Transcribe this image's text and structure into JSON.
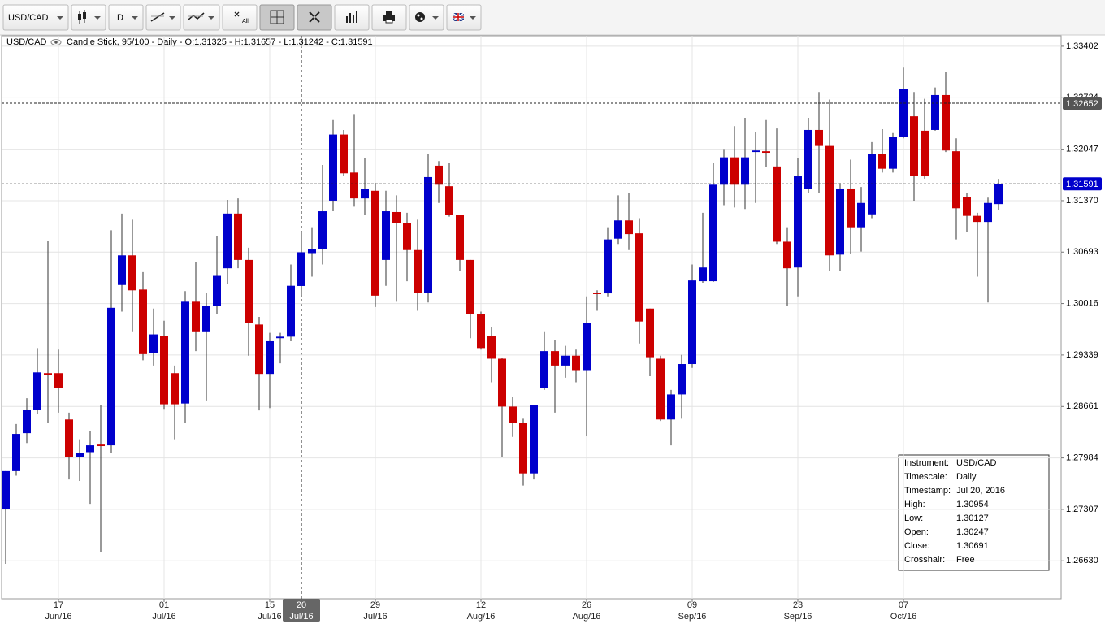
{
  "toolbar": {
    "symbol": "USD/CAD",
    "timescale": "D",
    "clear_label": "All"
  },
  "header": {
    "symbol": "USD/CAD",
    "details": "Candle Stick, 95/100 - Daily - O:1.31325 - H:1.31657 - L:1.31242 - C:1.31591"
  },
  "chart_data": {
    "type": "candlestick",
    "categories": [
      null,
      null,
      null,
      null,
      null,
      "17\nJun/16",
      null,
      null,
      null,
      null,
      null,
      null,
      null,
      null,
      null,
      "01\nJul/16",
      null,
      null,
      null,
      null,
      null,
      null,
      null,
      null,
      null,
      "15\nJul/16",
      null,
      null,
      "20\nJul/16",
      null,
      null,
      null,
      null,
      null,
      null,
      "29\nJul/16",
      null,
      null,
      null,
      null,
      null,
      null,
      null,
      null,
      null,
      "12\nAug/16",
      null,
      null,
      null,
      null,
      null,
      null,
      null,
      null,
      null,
      "26\nAug/16",
      null,
      null,
      null,
      null,
      null,
      null,
      null,
      null,
      null,
      "09\nSep/16",
      null,
      null,
      null,
      null,
      null,
      null,
      null,
      null,
      null,
      "23\nSep/16",
      null,
      null,
      null,
      null,
      null,
      null,
      null,
      null,
      null,
      "07\nOct/16",
      null,
      null,
      null,
      null,
      null,
      null,
      null,
      null,
      null
    ],
    "crosshair": "20\nJul/16",
    "open": [
      1.2731,
      1.2781,
      1.2831,
      1.2862,
      1.291,
      1.291,
      1.2849,
      1.28,
      1.2806,
      1.2816,
      1.2815,
      1.3026,
      1.3065,
      1.302,
      1.2936,
      1.2959,
      1.291,
      1.287,
      1.3004,
      1.2965,
      1.2998,
      1.3048,
      1.312,
      1.3059,
      1.2974,
      1.2909,
      1.2956,
      1.2958,
      1.30247,
      1.3068,
      1.3073,
      1.3137,
      1.3224,
      1.3174,
      1.314,
      1.315,
      1.3059,
      1.3122,
      1.3107,
      1.3072,
      1.3016,
      1.3183,
      1.3156,
      1.3118,
      1.3059,
      1.2988,
      1.2959,
      1.2929,
      1.2866,
      1.2844,
      1.2778,
      1.289,
      1.2939,
      1.292,
      1.2933,
      1.2914,
      1.3016,
      1.3015,
      1.3087,
      1.3111,
      1.3094,
      1.2995,
      1.2929,
      1.2849,
      1.2882,
      1.2922,
      1.3031,
      1.3031,
      1.3158,
      1.3194,
      1.3158,
      1.3201,
      1.3202,
      1.3182,
      1.3083,
      1.3049,
      1.3152,
      1.323,
      1.3209,
      1.3066,
      1.3153,
      1.3102,
      1.3119,
      1.3198,
      1.3179,
      1.3221,
      1.3248,
      1.3229,
      1.323,
      1.3276,
      1.3202,
      1.3142,
      1.3117,
      1.3109,
      1.31325
    ],
    "high": [
      1.2781,
      1.2843,
      1.2877,
      1.2943,
      1.3084,
      1.2941,
      1.2858,
      1.2823,
      1.2834,
      1.2868,
      1.3098,
      1.312,
      1.3112,
      1.3043,
      1.2995,
      1.2979,
      1.292,
      1.3018,
      1.3056,
      1.3016,
      1.3091,
      1.3138,
      1.314,
      1.3075,
      1.2984,
      1.2963,
      1.2963,
      1.3053,
      1.30954,
      1.3102,
      1.3184,
      1.3243,
      1.323,
      1.3251,
      1.3193,
      1.316,
      1.315,
      1.3144,
      1.3121,
      1.3112,
      1.3198,
      1.3189,
      1.3187,
      1.3118,
      1.3059,
      1.2991,
      1.2971,
      1.293,
      1.2879,
      1.285,
      1.2868,
      1.2965,
      1.2954,
      1.2946,
      1.2941,
      1.3011,
      1.3019,
      1.3102,
      1.3144,
      1.3147,
      1.3114,
      1.2995,
      1.2933,
      1.2888,
      1.2934,
      1.3053,
      1.3121,
      1.3187,
      1.3205,
      1.3235,
      1.3246,
      1.3227,
      1.3243,
      1.3232,
      1.3102,
      1.3193,
      1.3246,
      1.328,
      1.327,
      1.316,
      1.3191,
      1.3155,
      1.3214,
      1.3231,
      1.3226,
      1.3312,
      1.328,
      1.3271,
      1.3286,
      1.3306,
      1.3219,
      1.3147,
      1.3121,
      1.3141,
      1.31657
    ],
    "low": [
      1.2659,
      1.2775,
      1.2818,
      1.2856,
      1.2845,
      1.2858,
      1.277,
      1.2768,
      1.2738,
      1.2674,
      1.2805,
      1.2991,
      1.2965,
      1.2927,
      1.292,
      1.2863,
      1.2823,
      1.2845,
      1.2939,
      1.2874,
      1.2988,
      1.3027,
      1.3048,
      1.2933,
      1.2861,
      1.2864,
      1.2923,
      1.2952,
      1.30127,
      1.3037,
      1.3053,
      1.3123,
      1.317,
      1.3129,
      1.3118,
      1.2997,
      1.3025,
      1.3004,
      1.3031,
      1.2992,
      1.3003,
      1.3134,
      1.3116,
      1.3044,
      1.2956,
      1.2941,
      1.2898,
      1.2799,
      1.2826,
      1.2762,
      1.277,
      1.2888,
      1.2858,
      1.2904,
      1.2898,
      1.2827,
      1.2992,
      1.3011,
      1.308,
      1.3072,
      1.2949,
      1.2906,
      1.2847,
      1.2815,
      1.285,
      1.2917,
      1.3029,
      1.303,
      1.3131,
      1.3128,
      1.3126,
      1.3134,
      1.3181,
      1.308,
      1.2999,
      1.3011,
      1.3147,
      1.3147,
      1.3045,
      1.3045,
      1.3067,
      1.307,
      1.3114,
      1.3174,
      1.3174,
      1.3219,
      1.3137,
      1.3166,
      1.3229,
      1.3201,
      1.3086,
      1.3096,
      1.3037,
      1.3003,
      1.31242
    ],
    "close": [
      1.2781,
      1.283,
      1.2862,
      1.2911,
      1.2908,
      1.2891,
      1.28,
      1.2805,
      1.2815,
      1.2814,
      1.2996,
      1.3065,
      1.3019,
      1.2935,
      1.2961,
      1.2869,
      1.2869,
      1.3004,
      1.2965,
      1.2998,
      1.3038,
      1.312,
      1.3059,
      1.2976,
      1.2909,
      1.2952,
      1.2958,
      1.3025,
      1.30691,
      1.3073,
      1.3123,
      1.3224,
      1.3173,
      1.314,
      1.3152,
      1.3012,
      1.3123,
      1.3107,
      1.3072,
      1.3016,
      1.3168,
      1.3158,
      1.3118,
      1.3059,
      1.2988,
      1.2943,
      1.2929,
      1.2866,
      1.2845,
      1.2778,
      1.2868,
      1.2939,
      1.292,
      1.2933,
      1.2914,
      1.2976,
      1.3014,
      1.3086,
      1.3111,
      1.3093,
      1.2978,
      1.2931,
      1.2849,
      1.2882,
      1.2922,
      1.3032,
      1.3049,
      1.3158,
      1.3194,
      1.3158,
      1.3194,
      1.3203,
      1.32,
      1.3083,
      1.3048,
      1.3169,
      1.323,
      1.3209,
      1.3065,
      1.3153,
      1.3102,
      1.3134,
      1.3198,
      1.3179,
      1.3221,
      1.3284,
      1.317,
      1.3169,
      1.3276,
      1.3203,
      1.3127,
      1.3117,
      1.3109,
      1.3134,
      1.31591
    ],
    "up_color": "#0000cc",
    "down_color": "#cc0000",
    "ylim": [
      1.2613,
      1.3354
    ],
    "yticks": [
      1.33402,
      1.32724,
      1.32047,
      {
        "value": 1.3137,
        "label": "1.31370"
      },
      1.30693,
      1.30016,
      1.29339,
      1.28661,
      1.27984,
      1.27307,
      {
        "value": 1.2663,
        "label": "1.26630"
      }
    ],
    "grid": true,
    "price_lines": [
      {
        "value": 1.32652,
        "color": "#555555"
      },
      {
        "value": 1.31591,
        "color": "#0000cc"
      }
    ]
  },
  "info_box": {
    "rows": [
      {
        "label": "Instrument:",
        "value": "USD/CAD"
      },
      {
        "label": "Timescale:",
        "value": "Daily"
      },
      {
        "label": "Timestamp:",
        "value": "Jul 20, 2016"
      },
      {
        "label": "High:",
        "value": "1.30954"
      },
      {
        "label": "Low:",
        "value": "1.30127"
      },
      {
        "label": "Open:",
        "value": "1.30247"
      },
      {
        "label": "Close:",
        "value": "1.30691"
      },
      {
        "label": "Crosshair:",
        "value": "Free"
      }
    ]
  }
}
